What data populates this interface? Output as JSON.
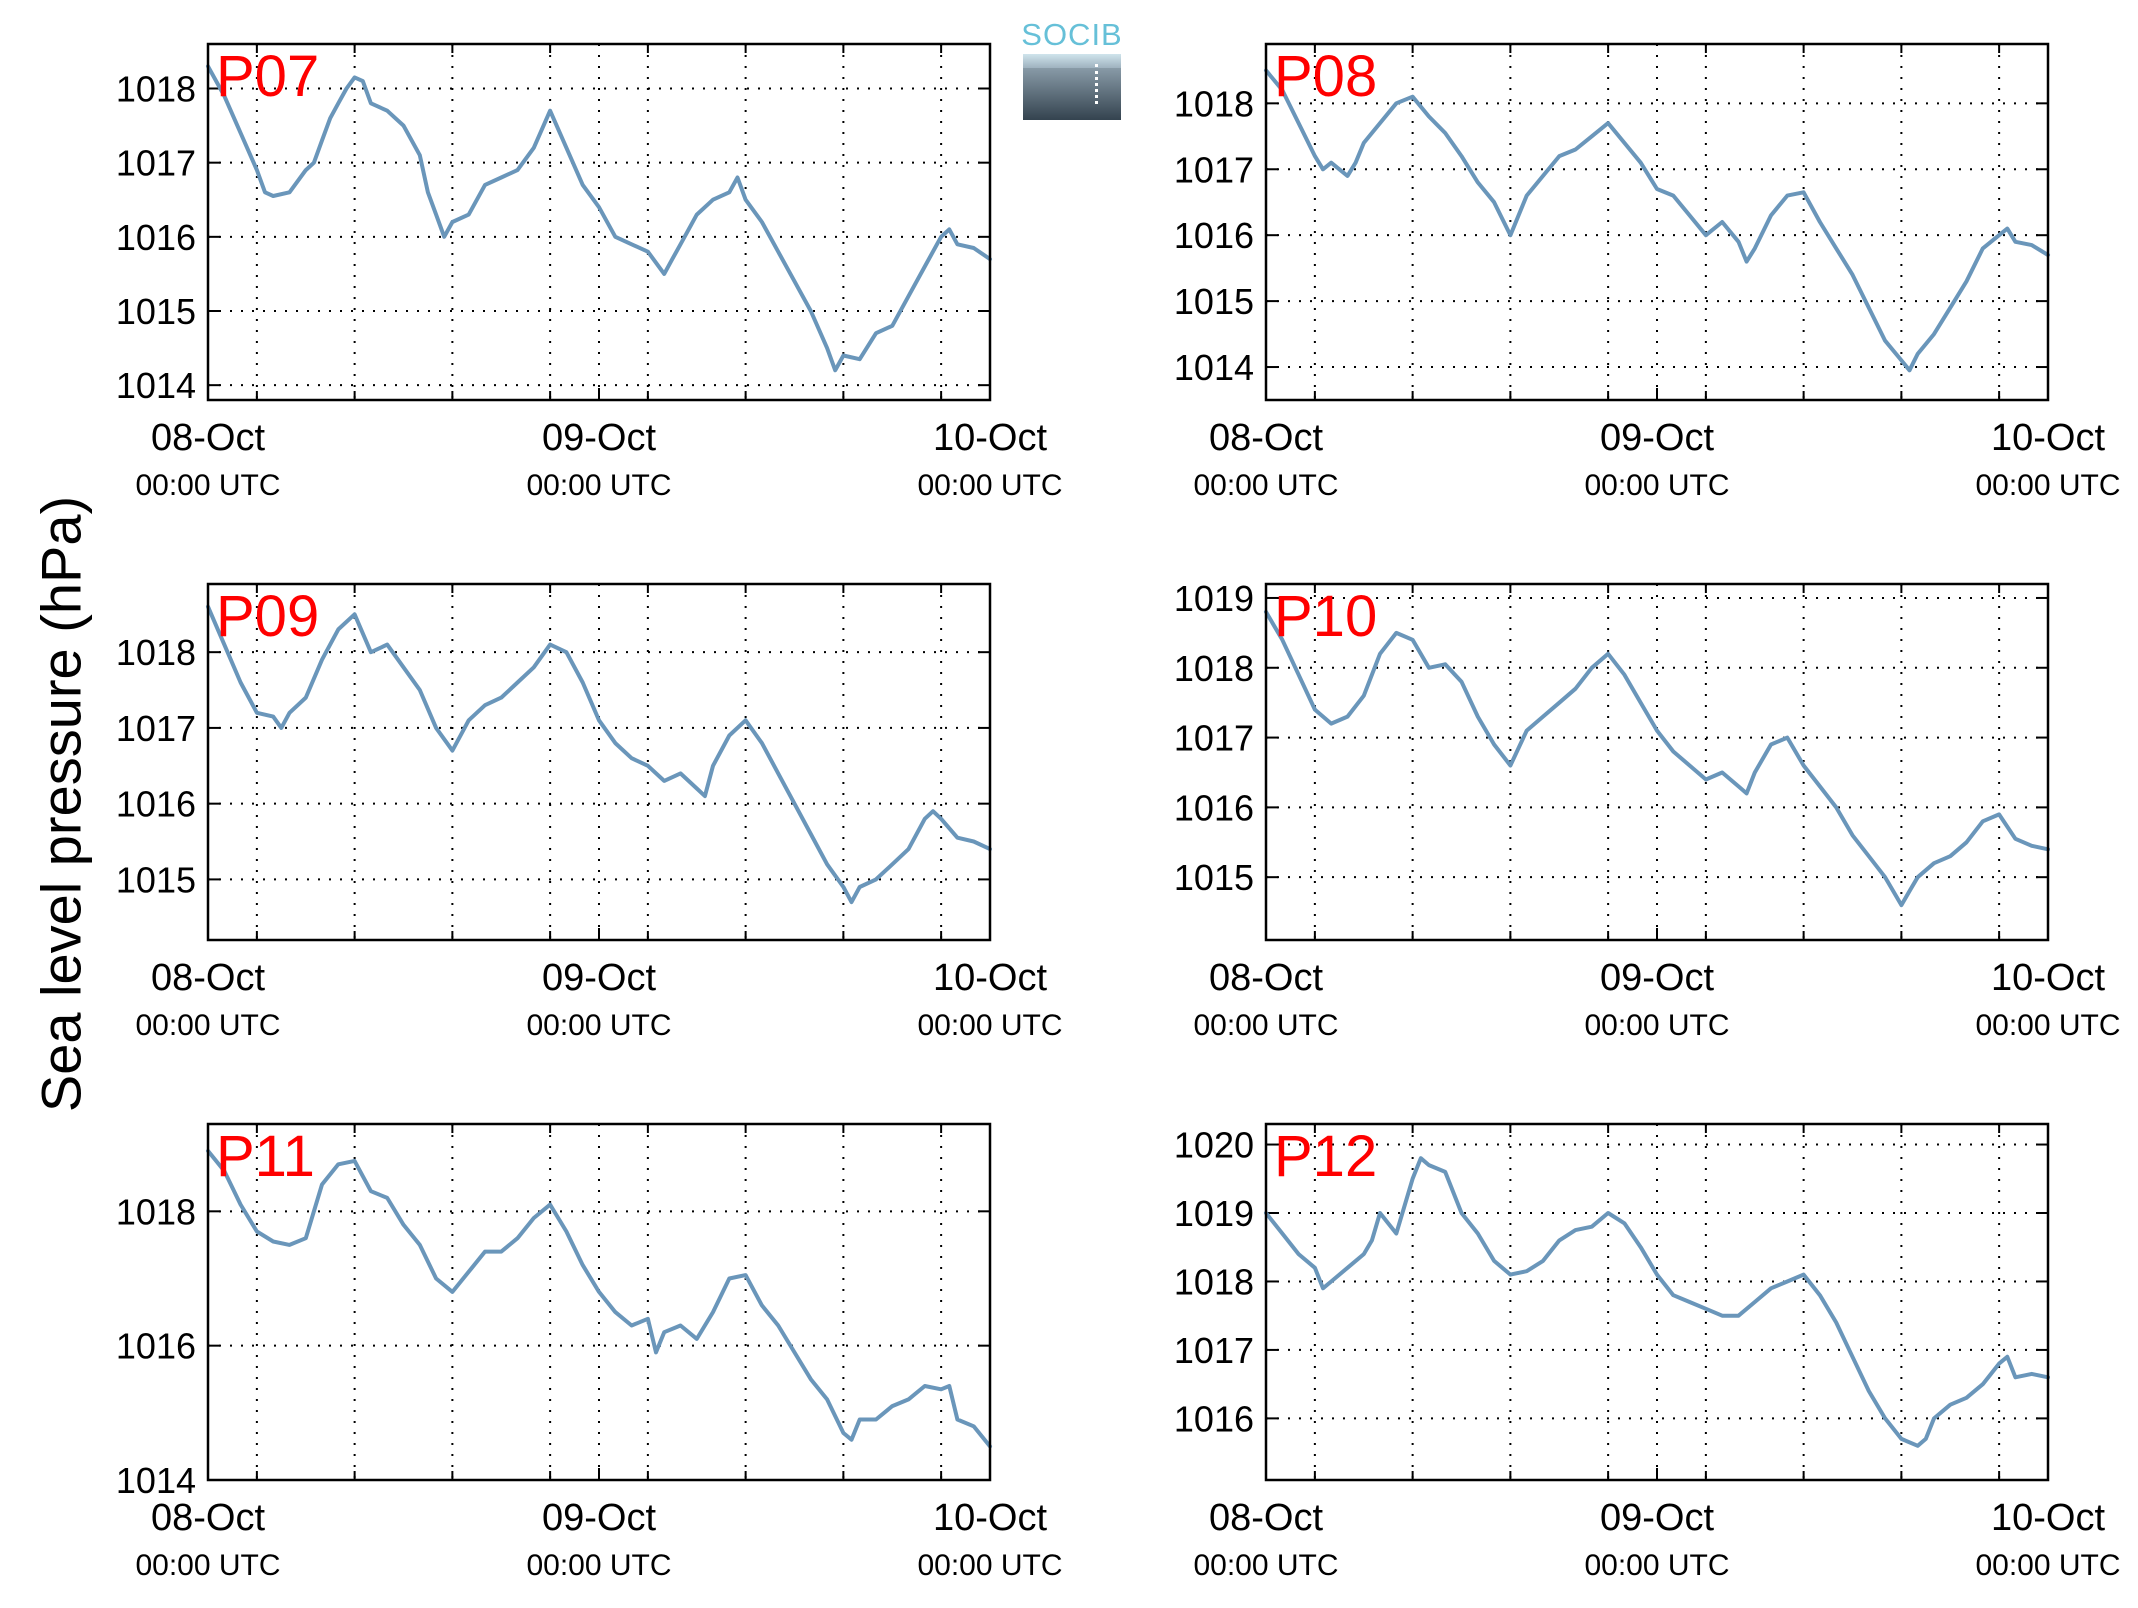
{
  "ylabel": "Sea level pressure (hPa)",
  "logo": {
    "text": "SOCIB"
  },
  "colors": {
    "line": "#6a96ba",
    "station_label": "#ff0000",
    "grid": "#000000"
  },
  "x_ticks": [
    {
      "value": 0,
      "date": "08-Oct",
      "time": "00:00 UTC"
    },
    {
      "value": 24,
      "date": "09-Oct",
      "time": "00:00 UTC"
    },
    {
      "value": 48,
      "date": "10-Oct",
      "time": "00:00 UTC"
    }
  ],
  "chart_data": [
    {
      "type": "line",
      "station": "P07",
      "x_unit": "hours since 08-Oct 00:00 UTC",
      "xlim": [
        0,
        48
      ],
      "ylim": [
        1013.8,
        1018.6
      ],
      "yticks": [
        1014,
        1015,
        1016,
        1017,
        1018
      ],
      "points": [
        [
          0,
          1018.3
        ],
        [
          1,
          1017.9
        ],
        [
          2,
          1017.4
        ],
        [
          3,
          1016.9
        ],
        [
          3.5,
          1016.6
        ],
        [
          4,
          1016.55
        ],
        [
          5,
          1016.6
        ],
        [
          6,
          1016.9
        ],
        [
          6.5,
          1017.0
        ],
        [
          7,
          1017.3
        ],
        [
          7.5,
          1017.6
        ],
        [
          8,
          1017.8
        ],
        [
          8.5,
          1018.0
        ],
        [
          9,
          1018.15
        ],
        [
          9.5,
          1018.1
        ],
        [
          10,
          1017.8
        ],
        [
          11,
          1017.7
        ],
        [
          12,
          1017.5
        ],
        [
          13,
          1017.1
        ],
        [
          13.5,
          1016.6
        ],
        [
          14,
          1016.3
        ],
        [
          14.5,
          1016.0
        ],
        [
          15,
          1016.2
        ],
        [
          16,
          1016.3
        ],
        [
          17,
          1016.7
        ],
        [
          18,
          1016.8
        ],
        [
          19,
          1016.9
        ],
        [
          20,
          1017.2
        ],
        [
          21,
          1017.7
        ],
        [
          22,
          1017.2
        ],
        [
          23,
          1016.7
        ],
        [
          24,
          1016.4
        ],
        [
          25,
          1016.0
        ],
        [
          26,
          1015.9
        ],
        [
          27,
          1015.8
        ],
        [
          28,
          1015.5
        ],
        [
          28.5,
          1015.7
        ],
        [
          29,
          1015.9
        ],
        [
          30,
          1016.3
        ],
        [
          31,
          1016.5
        ],
        [
          32,
          1016.6
        ],
        [
          32.5,
          1016.8
        ],
        [
          33,
          1016.5
        ],
        [
          34,
          1016.2
        ],
        [
          35,
          1015.8
        ],
        [
          36,
          1015.4
        ],
        [
          37,
          1015.0
        ],
        [
          38,
          1014.5
        ],
        [
          38.5,
          1014.2
        ],
        [
          39,
          1014.4
        ],
        [
          40,
          1014.35
        ],
        [
          41,
          1014.7
        ],
        [
          42,
          1014.8
        ],
        [
          43,
          1015.2
        ],
        [
          44,
          1015.6
        ],
        [
          45,
          1016.0
        ],
        [
          45.5,
          1016.1
        ],
        [
          46,
          1015.9
        ],
        [
          47,
          1015.85
        ],
        [
          48,
          1015.7
        ]
      ]
    },
    {
      "type": "line",
      "station": "P08",
      "x_unit": "hours since 08-Oct 00:00 UTC",
      "xlim": [
        0,
        48
      ],
      "ylim": [
        1013.5,
        1018.9
      ],
      "yticks": [
        1014,
        1015,
        1016,
        1017,
        1018
      ],
      "points": [
        [
          0,
          1018.5
        ],
        [
          1,
          1018.2
        ],
        [
          2,
          1017.7
        ],
        [
          3,
          1017.2
        ],
        [
          3.5,
          1017.0
        ],
        [
          4,
          1017.1
        ],
        [
          5,
          1016.9
        ],
        [
          5.5,
          1017.1
        ],
        [
          6,
          1017.4
        ],
        [
          7,
          1017.7
        ],
        [
          8,
          1018.0
        ],
        [
          9,
          1018.1
        ],
        [
          10,
          1017.8
        ],
        [
          11,
          1017.55
        ],
        [
          12,
          1017.2
        ],
        [
          13,
          1016.8
        ],
        [
          14,
          1016.5
        ],
        [
          15,
          1016.0
        ],
        [
          16,
          1016.6
        ],
        [
          17,
          1016.9
        ],
        [
          18,
          1017.2
        ],
        [
          19,
          1017.3
        ],
        [
          20,
          1017.5
        ],
        [
          21,
          1017.7
        ],
        [
          22,
          1017.4
        ],
        [
          23,
          1017.1
        ],
        [
          24,
          1016.7
        ],
        [
          25,
          1016.6
        ],
        [
          26,
          1016.3
        ],
        [
          27,
          1016.0
        ],
        [
          28,
          1016.2
        ],
        [
          29,
          1015.9
        ],
        [
          29.5,
          1015.6
        ],
        [
          30,
          1015.8
        ],
        [
          31,
          1016.3
        ],
        [
          32,
          1016.6
        ],
        [
          33,
          1016.65
        ],
        [
          34,
          1016.2
        ],
        [
          35,
          1015.8
        ],
        [
          36,
          1015.4
        ],
        [
          37,
          1014.9
        ],
        [
          38,
          1014.4
        ],
        [
          39,
          1014.1
        ],
        [
          39.5,
          1013.95
        ],
        [
          40,
          1014.2
        ],
        [
          41,
          1014.5
        ],
        [
          42,
          1014.9
        ],
        [
          43,
          1015.3
        ],
        [
          44,
          1015.8
        ],
        [
          45,
          1016.0
        ],
        [
          45.5,
          1016.1
        ],
        [
          46,
          1015.9
        ],
        [
          47,
          1015.85
        ],
        [
          48,
          1015.7
        ]
      ]
    },
    {
      "type": "line",
      "station": "P09",
      "x_unit": "hours since 08-Oct 00:00 UTC",
      "xlim": [
        0,
        48
      ],
      "ylim": [
        1014.2,
        1018.9
      ],
      "yticks": [
        1015,
        1016,
        1017,
        1018
      ],
      "points": [
        [
          0,
          1018.6
        ],
        [
          1,
          1018.1
        ],
        [
          2,
          1017.6
        ],
        [
          3,
          1017.2
        ],
        [
          4,
          1017.15
        ],
        [
          4.5,
          1017.0
        ],
        [
          5,
          1017.2
        ],
        [
          6,
          1017.4
        ],
        [
          7,
          1017.9
        ],
        [
          8,
          1018.3
        ],
        [
          9,
          1018.5
        ],
        [
          10,
          1018.0
        ],
        [
          11,
          1018.1
        ],
        [
          12,
          1017.8
        ],
        [
          13,
          1017.5
        ],
        [
          14,
          1017.0
        ],
        [
          15,
          1016.7
        ],
        [
          16,
          1017.1
        ],
        [
          17,
          1017.3
        ],
        [
          18,
          1017.4
        ],
        [
          19,
          1017.6
        ],
        [
          20,
          1017.8
        ],
        [
          21,
          1018.1
        ],
        [
          22,
          1018.0
        ],
        [
          23,
          1017.6
        ],
        [
          24,
          1017.1
        ],
        [
          25,
          1016.8
        ],
        [
          26,
          1016.6
        ],
        [
          27,
          1016.5
        ],
        [
          28,
          1016.3
        ],
        [
          29,
          1016.4
        ],
        [
          30,
          1016.2
        ],
        [
          30.5,
          1016.1
        ],
        [
          31,
          1016.5
        ],
        [
          32,
          1016.9
        ],
        [
          33,
          1017.1
        ],
        [
          34,
          1016.8
        ],
        [
          35,
          1016.4
        ],
        [
          36,
          1016.0
        ],
        [
          37,
          1015.6
        ],
        [
          38,
          1015.2
        ],
        [
          39,
          1014.9
        ],
        [
          39.5,
          1014.7
        ],
        [
          40,
          1014.9
        ],
        [
          41,
          1015.0
        ],
        [
          42,
          1015.2
        ],
        [
          43,
          1015.4
        ],
        [
          44,
          1015.8
        ],
        [
          44.5,
          1015.9
        ],
        [
          45,
          1015.8
        ],
        [
          46,
          1015.55
        ],
        [
          47,
          1015.5
        ],
        [
          48,
          1015.4
        ]
      ]
    },
    {
      "type": "line",
      "station": "P10",
      "x_unit": "hours since 08-Oct 00:00 UTC",
      "xlim": [
        0,
        48
      ],
      "ylim": [
        1014.1,
        1019.2
      ],
      "yticks": [
        1015,
        1016,
        1017,
        1018,
        1019
      ],
      "points": [
        [
          0,
          1018.8
        ],
        [
          1,
          1018.4
        ],
        [
          2,
          1017.9
        ],
        [
          3,
          1017.4
        ],
        [
          4,
          1017.2
        ],
        [
          5,
          1017.3
        ],
        [
          6,
          1017.6
        ],
        [
          7,
          1018.2
        ],
        [
          8,
          1018.5
        ],
        [
          9,
          1018.4
        ],
        [
          10,
          1018.0
        ],
        [
          11,
          1018.05
        ],
        [
          12,
          1017.8
        ],
        [
          13,
          1017.3
        ],
        [
          14,
          1016.9
        ],
        [
          15,
          1016.6
        ],
        [
          16,
          1017.1
        ],
        [
          17,
          1017.3
        ],
        [
          18,
          1017.5
        ],
        [
          19,
          1017.7
        ],
        [
          20,
          1018.0
        ],
        [
          21,
          1018.2
        ],
        [
          22,
          1017.9
        ],
        [
          23,
          1017.5
        ],
        [
          24,
          1017.1
        ],
        [
          25,
          1016.8
        ],
        [
          26,
          1016.6
        ],
        [
          27,
          1016.4
        ],
        [
          28,
          1016.5
        ],
        [
          29,
          1016.3
        ],
        [
          29.5,
          1016.2
        ],
        [
          30,
          1016.5
        ],
        [
          31,
          1016.9
        ],
        [
          32,
          1017.0
        ],
        [
          33,
          1016.6
        ],
        [
          34,
          1016.3
        ],
        [
          35,
          1016.0
        ],
        [
          36,
          1015.6
        ],
        [
          37,
          1015.3
        ],
        [
          38,
          1015.0
        ],
        [
          39,
          1014.6
        ],
        [
          39.5,
          1014.8
        ],
        [
          40,
          1015.0
        ],
        [
          41,
          1015.2
        ],
        [
          42,
          1015.3
        ],
        [
          43,
          1015.5
        ],
        [
          44,
          1015.8
        ],
        [
          45,
          1015.9
        ],
        [
          46,
          1015.55
        ],
        [
          47,
          1015.45
        ],
        [
          48,
          1015.4
        ]
      ]
    },
    {
      "type": "line",
      "station": "P11",
      "x_unit": "hours since 08-Oct 00:00 UTC",
      "xlim": [
        0,
        48
      ],
      "ylim": [
        1014.0,
        1019.3
      ],
      "yticks": [
        1014,
        1016,
        1018
      ],
      "points": [
        [
          0,
          1018.9
        ],
        [
          1,
          1018.6
        ],
        [
          2,
          1018.1
        ],
        [
          3,
          1017.7
        ],
        [
          4,
          1017.55
        ],
        [
          5,
          1017.5
        ],
        [
          6,
          1017.6
        ],
        [
          7,
          1018.4
        ],
        [
          8,
          1018.7
        ],
        [
          9,
          1018.75
        ],
        [
          10,
          1018.3
        ],
        [
          11,
          1018.2
        ],
        [
          12,
          1017.8
        ],
        [
          13,
          1017.5
        ],
        [
          14,
          1017.0
        ],
        [
          15,
          1016.8
        ],
        [
          16,
          1017.1
        ],
        [
          17,
          1017.4
        ],
        [
          18,
          1017.4
        ],
        [
          19,
          1017.6
        ],
        [
          20,
          1017.9
        ],
        [
          21,
          1018.1
        ],
        [
          22,
          1017.7
        ],
        [
          23,
          1017.2
        ],
        [
          24,
          1016.8
        ],
        [
          25,
          1016.5
        ],
        [
          26,
          1016.3
        ],
        [
          27,
          1016.4
        ],
        [
          27.5,
          1015.9
        ],
        [
          28,
          1016.2
        ],
        [
          29,
          1016.3
        ],
        [
          30,
          1016.1
        ],
        [
          31,
          1016.5
        ],
        [
          32,
          1017.0
        ],
        [
          33,
          1017.05
        ],
        [
          34,
          1016.6
        ],
        [
          35,
          1016.3
        ],
        [
          36,
          1015.9
        ],
        [
          37,
          1015.5
        ],
        [
          38,
          1015.2
        ],
        [
          39,
          1014.7
        ],
        [
          39.5,
          1014.6
        ],
        [
          40,
          1014.9
        ],
        [
          41,
          1014.9
        ],
        [
          42,
          1015.1
        ],
        [
          43,
          1015.2
        ],
        [
          44,
          1015.4
        ],
        [
          45,
          1015.35
        ],
        [
          45.5,
          1015.4
        ],
        [
          46,
          1014.9
        ],
        [
          47,
          1014.8
        ],
        [
          48,
          1014.5
        ]
      ]
    },
    {
      "type": "line",
      "station": "P12",
      "x_unit": "hours since 08-Oct 00:00 UTC",
      "xlim": [
        0,
        48
      ],
      "ylim": [
        1015.1,
        1020.3
      ],
      "yticks": [
        1016,
        1017,
        1018,
        1019,
        1020
      ],
      "points": [
        [
          0,
          1019.0
        ],
        [
          1,
          1018.7
        ],
        [
          2,
          1018.4
        ],
        [
          3,
          1018.2
        ],
        [
          3.5,
          1017.9
        ],
        [
          4,
          1018.0
        ],
        [
          5,
          1018.2
        ],
        [
          6,
          1018.4
        ],
        [
          6.5,
          1018.6
        ],
        [
          7,
          1019.0
        ],
        [
          8,
          1018.7
        ],
        [
          9,
          1019.5
        ],
        [
          9.5,
          1019.8
        ],
        [
          10,
          1019.7
        ],
        [
          11,
          1019.6
        ],
        [
          12,
          1019.0
        ],
        [
          13,
          1018.7
        ],
        [
          14,
          1018.3
        ],
        [
          15,
          1018.1
        ],
        [
          16,
          1018.15
        ],
        [
          17,
          1018.3
        ],
        [
          18,
          1018.6
        ],
        [
          19,
          1018.75
        ],
        [
          20,
          1018.8
        ],
        [
          21,
          1019.0
        ],
        [
          22,
          1018.85
        ],
        [
          23,
          1018.5
        ],
        [
          24,
          1018.1
        ],
        [
          25,
          1017.8
        ],
        [
          26,
          1017.7
        ],
        [
          27,
          1017.6
        ],
        [
          28,
          1017.5
        ],
        [
          29,
          1017.5
        ],
        [
          30,
          1017.7
        ],
        [
          31,
          1017.9
        ],
        [
          32,
          1018.0
        ],
        [
          33,
          1018.1
        ],
        [
          34,
          1017.8
        ],
        [
          35,
          1017.4
        ],
        [
          36,
          1016.9
        ],
        [
          37,
          1016.4
        ],
        [
          38,
          1016.0
        ],
        [
          39,
          1015.7
        ],
        [
          40,
          1015.6
        ],
        [
          40.5,
          1015.7
        ],
        [
          41,
          1016.0
        ],
        [
          42,
          1016.2
        ],
        [
          43,
          1016.3
        ],
        [
          44,
          1016.5
        ],
        [
          45,
          1016.8
        ],
        [
          45.5,
          1016.9
        ],
        [
          46,
          1016.6
        ],
        [
          47,
          1016.65
        ],
        [
          48,
          1016.6
        ]
      ]
    }
  ]
}
